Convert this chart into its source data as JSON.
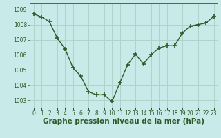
{
  "x": [
    0,
    1,
    2,
    3,
    4,
    5,
    6,
    7,
    8,
    9,
    10,
    11,
    12,
    13,
    14,
    15,
    16,
    17,
    18,
    19,
    20,
    21,
    22,
    23
  ],
  "y": [
    1008.7,
    1008.5,
    1008.2,
    1007.1,
    1006.4,
    1005.15,
    1004.6,
    1003.55,
    1003.35,
    1003.35,
    1002.9,
    1004.15,
    1005.35,
    1006.05,
    1005.4,
    1006.0,
    1006.45,
    1006.6,
    1006.6,
    1007.45,
    1007.9,
    1008.0,
    1008.1,
    1008.55
  ],
  "line_color": "#2d5a27",
  "marker_color": "#2d5a27",
  "bg_color": "#c8eae8",
  "grid_color": "#b0d4cc",
  "ylabel_ticks": [
    1003,
    1004,
    1005,
    1006,
    1007,
    1008,
    1009
  ],
  "ylim": [
    1002.5,
    1009.4
  ],
  "xlim": [
    -0.5,
    23.5
  ],
  "xlabel": "Graphe pression niveau de la mer (hPa)",
  "xlabel_color": "#2d5a27",
  "title": "",
  "tick_fontsize": 5.5,
  "xlabel_fontsize": 7.5
}
